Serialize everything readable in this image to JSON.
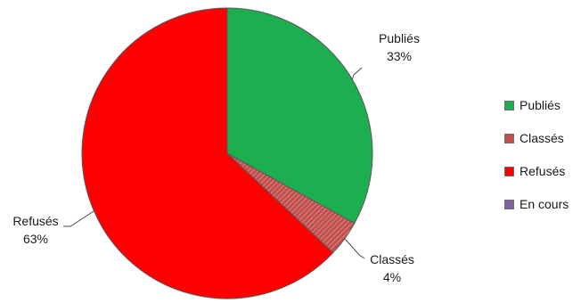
{
  "chart_data": {
    "type": "pie",
    "categories": [
      "Publiés",
      "Classés",
      "Refusés",
      "En cours"
    ],
    "values": [
      33,
      4,
      63,
      0
    ],
    "data_labels": [
      {
        "name": "Publiés",
        "value": "33%"
      },
      {
        "name": "Classés",
        "value": "4%"
      },
      {
        "name": "Refusés",
        "value": "63%"
      }
    ],
    "colors": [
      "#1daf4f",
      "#c0504d",
      "#ff0000",
      "#8064a2"
    ],
    "legend": "right",
    "title": ""
  }
}
